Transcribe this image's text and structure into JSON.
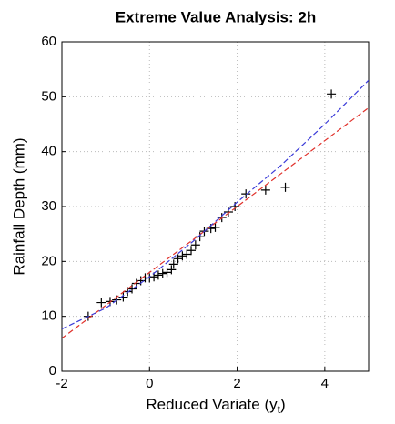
{
  "chart_data": {
    "type": "scatter",
    "title": "Extreme Value Analysis: 2h",
    "xlabel": [
      "Reduced Variate (y",
      "t",
      ")"
    ],
    "ylabel": "Rainfall Depth (mm)",
    "xlim": [
      -2,
      5
    ],
    "ylim": [
      0,
      60
    ],
    "xticks": [
      -2,
      0,
      2,
      4
    ],
    "yticks": [
      0,
      10,
      20,
      30,
      40,
      50,
      60
    ],
    "grid": true,
    "series": [
      {
        "marker": "+",
        "color": "#000000",
        "x": [
          -1.4,
          -1.1,
          -0.9,
          -0.75,
          -0.6,
          -0.5,
          -0.4,
          -0.3,
          -0.2,
          -0.1,
          0,
          0.1,
          0.2,
          0.3,
          0.4,
          0.5,
          0.55,
          0.65,
          0.75,
          0.85,
          0.95,
          1.05,
          1.15,
          1.25,
          1.4,
          1.5,
          1.65,
          1.8,
          1.95,
          2.2,
          2.65,
          3.1,
          4.15
        ],
        "values": [
          10,
          12.5,
          12.7,
          13,
          13.5,
          14.5,
          15,
          16,
          16.5,
          17,
          17,
          17.2,
          17.5,
          17.8,
          18,
          18.5,
          19.5,
          20.5,
          21,
          21.3,
          22,
          23,
          24.5,
          25.5,
          26,
          26.2,
          28,
          29,
          30,
          32.3,
          33,
          33.5,
          50.5
        ]
      },
      {
        "line_style": "dashed",
        "color": "#e0302a",
        "x": [
          -2,
          5
        ],
        "values": [
          6,
          48
        ]
      },
      {
        "line_style": "dashed",
        "color": "#3a3ad8",
        "x": [
          -2,
          -1,
          0,
          1,
          2,
          3,
          4,
          5
        ],
        "values": [
          7.7,
          11.5,
          17.2,
          23.7,
          30.8,
          37.5,
          45,
          53
        ]
      }
    ]
  }
}
